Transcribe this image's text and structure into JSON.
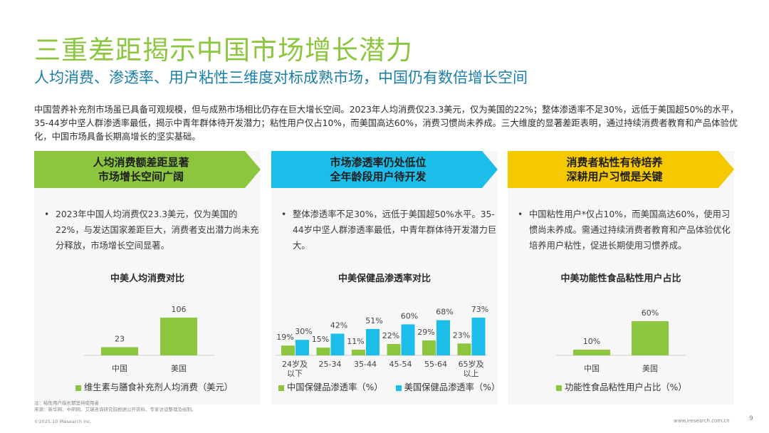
{
  "header": {
    "title": "三重差距揭示中国市场增长潜力",
    "subtitle": "人均消费、渗透率、用户粘性三维度对标成熟市场，中国仍有数倍增长空间",
    "intro": "中国营养补充剂市场虽已具备可观规模，但与成熟市场相比仍存在巨大增长空间。2023年人均消费仅23.3美元，仅为美国的22%；整体渗透率不足30%，远低于美国超50%的水平，35-44岁中坚人群渗透率最低，揭示中青年群体待开发潜力；粘性用户仅占10%，而美国高达60%，消费习惯尚未养成。三大维度的显著差距表明，通过持续消费者教育和产品体验优化，中国市场具备长期高增长的坚实基础。"
  },
  "columns": [
    {
      "banner_line1": "人均消费额差距显著",
      "banner_line2": "市场增长空间广阔",
      "banner_color": "#8cc63f",
      "bullet": "2023年中国人均消费仅23.3美元，仅为美国的22%，与发达国家差距巨大，消费者支出潜力尚未充分释放，市场增长空间显著。",
      "chart_title": "中美人均消费对比",
      "legend": "维生素与膳食补充剂人均消费（美元）"
    },
    {
      "banner_line1": "市场渗透率仍处低位",
      "banner_line2": "全年龄段用户待开发",
      "banner_color": "#1dbde9",
      "bullet": "整体渗透率不足30%，远低于美国超50%水平。35-44岁中坚人群渗透率最低，中青年群体待开发潜力巨大。",
      "chart_title": "中美保健品渗透率对比",
      "legend_cn": "中国保健品渗透率（%）",
      "legend_us": "美国保健品渗透率（%）"
    },
    {
      "banner_line1": "消费者粘性有待培养",
      "banner_line2": "深耕用户习惯是关键",
      "banner_color": "#f5c800",
      "bullet": "中国粘性用户*仅占10%，而美国高达60%，使用习惯尚未养成。需通过持续消费者教育和产品体验优化培养用户粘性，促进长期使用习惯养成。",
      "chart_title": "中美功能性食品粘性用户占比",
      "legend": "功能性食品粘性用户占比（%）"
    }
  ],
  "chart_data": [
    {
      "type": "bar",
      "title": "中美人均消费对比",
      "categories": [
        "中国",
        "美国"
      ],
      "series": [
        {
          "name": "维生素与膳食补充剂人均消费（美元）",
          "values": [
            23,
            106
          ]
        }
      ],
      "ylim": [
        0,
        106
      ],
      "color": "#8cc63f"
    },
    {
      "type": "bar",
      "title": "中美保健品渗透率对比",
      "categories": [
        "24岁及以下",
        "25-34",
        "35-44",
        "45-54",
        "55-64",
        "65岁及以上"
      ],
      "category_lines": [
        [
          "24岁及",
          "以下"
        ],
        [
          "25-34"
        ],
        [
          "35-44"
        ],
        [
          "45-54"
        ],
        [
          "55-64"
        ],
        [
          "65岁及",
          "以上"
        ]
      ],
      "series": [
        {
          "name": "中国保健品渗透率（%）",
          "values": [
            19,
            15,
            11,
            22,
            29,
            23
          ],
          "color": "#8cc63f"
        },
        {
          "name": "美国保健品渗透率（%）",
          "values": [
            30,
            42,
            51,
            60,
            68,
            73
          ],
          "color": "#1dbde9"
        }
      ],
      "value_suffix": "%",
      "ylim": [
        0,
        73
      ]
    },
    {
      "type": "bar",
      "title": "中美功能性食品粘性用户占比",
      "categories": [
        "中国",
        "美国"
      ],
      "series": [
        {
          "name": "功能性食品粘性用户占比（%）",
          "values": [
            10,
            60
          ]
        }
      ],
      "value_suffix": "%",
      "ylim": [
        0,
        60
      ],
      "color": "#8cc63f"
    }
  ],
  "footer": {
    "note_line1": "注：粘性用户指长期坚持使用者",
    "note_line2": "来源：新华网、中研网、艾瑞咨询研究院根据公开资料、专家访谈整理及绘制。",
    "copyright": "©2025.10 iResearch Inc.",
    "website": "www.iresearch.com.cn",
    "page": "9"
  }
}
